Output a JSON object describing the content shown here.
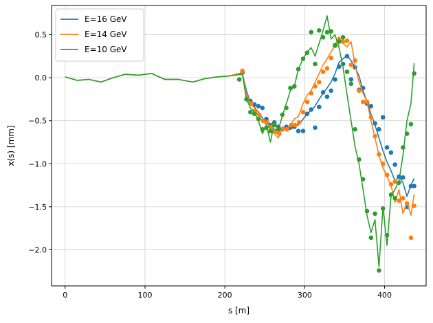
{
  "chart_data": {
    "type": "line",
    "title": "",
    "xlabel": "s [m]",
    "ylabel": "x(s) [mm]",
    "xlim": [
      -17,
      452
    ],
    "ylim": [
      -2.42,
      0.84
    ],
    "grid": true,
    "legend_position": "top-left",
    "xticks": [
      0,
      100,
      200,
      300,
      400
    ],
    "xtick_labels": [
      "0",
      "100",
      "200",
      "300",
      "400"
    ],
    "yticks": [
      0.5,
      0.0,
      -0.5,
      -1.0,
      -1.5,
      -2.0
    ],
    "ytick_labels": [
      "0.5",
      "0.0",
      "−0.5",
      "−1.0",
      "−1.5",
      "−2.0"
    ],
    "series": [
      {
        "name": "E=16 GeV",
        "color": "#1f77b4",
        "line": {
          "x": [
            0,
            15,
            30,
            45,
            60,
            75,
            92,
            108,
            125,
            142,
            160,
            175,
            190,
            205,
            222,
            227,
            232,
            237,
            242,
            247,
            252,
            257,
            262,
            267,
            272,
            277,
            282,
            287,
            292,
            298,
            303,
            308,
            313,
            318,
            323,
            328,
            333,
            338,
            343,
            348,
            353,
            358,
            363,
            368,
            373,
            378,
            383,
            388,
            393,
            398,
            403,
            408,
            413,
            418,
            423,
            428,
            433,
            437
          ],
          "y": [
            0.01,
            -0.03,
            -0.02,
            -0.05,
            0.0,
            0.04,
            0.03,
            0.05,
            -0.02,
            -0.02,
            -0.05,
            -0.01,
            0.01,
            0.02,
            0.05,
            -0.15,
            -0.28,
            -0.34,
            -0.4,
            -0.47,
            -0.52,
            -0.56,
            -0.6,
            -0.62,
            -0.6,
            -0.57,
            -0.58,
            -0.55,
            -0.55,
            -0.48,
            -0.42,
            -0.38,
            -0.33,
            -0.25,
            -0.18,
            -0.12,
            -0.05,
            0.05,
            0.18,
            0.22,
            0.26,
            0.2,
            0.12,
            0.02,
            -0.15,
            -0.28,
            -0.42,
            -0.55,
            -0.7,
            -0.85,
            -0.98,
            -1.08,
            -1.2,
            -1.15,
            -1.22,
            -1.38,
            -1.25,
            -1.17
          ]
        },
        "points": {
          "x": [
            222,
            232,
            237,
            242,
            247,
            252,
            257,
            262,
            267,
            272,
            277,
            282,
            287,
            292,
            298,
            303,
            308,
            313,
            318,
            323,
            328,
            333,
            338,
            343,
            348,
            353,
            358,
            363,
            368,
            373,
            378,
            383,
            388,
            393,
            398,
            403,
            408,
            413,
            418,
            423,
            428,
            433,
            437
          ],
          "y": [
            0.06,
            -0.27,
            -0.31,
            -0.33,
            -0.35,
            -0.48,
            -0.55,
            -0.52,
            -0.57,
            -0.6,
            -0.57,
            -0.58,
            -0.57,
            -0.62,
            -0.62,
            -0.42,
            -0.37,
            -0.58,
            -0.34,
            -0.17,
            -0.22,
            -0.15,
            -0.02,
            0.13,
            0.16,
            0.25,
            -0.02,
            0.12,
            -0.14,
            -0.12,
            -0.3,
            -0.33,
            -0.53,
            -0.6,
            -0.46,
            -0.81,
            -0.87,
            -1.01,
            -1.15,
            -1.16,
            -1.5,
            -1.26,
            -1.26
          ]
        }
      },
      {
        "name": "E=14 GeV",
        "color": "#ff7f0e",
        "line": {
          "x": [
            0,
            15,
            30,
            45,
            60,
            75,
            92,
            108,
            125,
            142,
            160,
            175,
            190,
            205,
            222,
            227,
            232,
            237,
            242,
            247,
            252,
            257,
            262,
            267,
            272,
            277,
            282,
            287,
            292,
            298,
            303,
            308,
            313,
            318,
            323,
            328,
            333,
            338,
            343,
            348,
            353,
            358,
            363,
            368,
            373,
            378,
            383,
            388,
            393,
            398,
            403,
            408,
            413,
            418,
            423,
            428,
            433,
            437
          ],
          "y": [
            0.01,
            -0.03,
            -0.02,
            -0.05,
            0.0,
            0.04,
            0.03,
            0.05,
            -0.02,
            -0.02,
            -0.05,
            -0.01,
            0.01,
            0.02,
            0.06,
            -0.2,
            -0.3,
            -0.35,
            -0.45,
            -0.5,
            -0.55,
            -0.6,
            -0.65,
            -0.7,
            -0.58,
            -0.62,
            -0.55,
            -0.48,
            -0.45,
            -0.3,
            -0.2,
            -0.15,
            -0.05,
            0.05,
            0.15,
            0.22,
            0.3,
            0.38,
            0.48,
            0.4,
            0.36,
            0.42,
            0.15,
            -0.05,
            -0.18,
            -0.28,
            -0.5,
            -0.7,
            -0.9,
            -1.05,
            -1.15,
            -1.25,
            -1.45,
            -1.3,
            -1.58,
            -1.45,
            -1.6,
            -1.35
          ]
        },
        "points": {
          "x": [
            222,
            228,
            233,
            238,
            243,
            248,
            253,
            258,
            263,
            268,
            273,
            278,
            283,
            288,
            293,
            298,
            303,
            308,
            313,
            318,
            323,
            328,
            333,
            338,
            343,
            348,
            353,
            358,
            363,
            368,
            373,
            378,
            383,
            388,
            393,
            398,
            403,
            408,
            413,
            418,
            423,
            428,
            433,
            437
          ],
          "y": [
            0.08,
            -0.24,
            -0.3,
            -0.38,
            -0.43,
            -0.5,
            -0.52,
            -0.57,
            -0.63,
            -0.65,
            -0.59,
            -0.6,
            -0.55,
            -0.55,
            -0.52,
            -0.4,
            -0.28,
            -0.18,
            -0.1,
            -0.05,
            0.07,
            0.11,
            0.23,
            0.37,
            0.44,
            0.42,
            0.43,
            0.15,
            0.2,
            -0.15,
            -0.28,
            -0.28,
            -0.46,
            -0.68,
            -0.89,
            -1.0,
            -1.13,
            -1.24,
            -1.21,
            -1.43,
            -1.4,
            -1.46,
            -1.86,
            -1.49
          ]
        }
      },
      {
        "name": "E=10 GeV",
        "color": "#2ca02c",
        "line": {
          "x": [
            0,
            15,
            30,
            45,
            60,
            75,
            92,
            108,
            125,
            142,
            160,
            175,
            190,
            205,
            222,
            227,
            232,
            237,
            242,
            247,
            252,
            257,
            262,
            267,
            272,
            277,
            282,
            287,
            292,
            298,
            303,
            308,
            313,
            318,
            323,
            328,
            333,
            338,
            343,
            348,
            353,
            358,
            363,
            368,
            373,
            378,
            383,
            388,
            393,
            398,
            403,
            408,
            413,
            418,
            423,
            428,
            433,
            437
          ],
          "y": [
            0.01,
            -0.03,
            -0.02,
            -0.05,
            0.0,
            0.04,
            0.03,
            0.05,
            -0.02,
            -0.02,
            -0.05,
            -0.01,
            0.01,
            0.02,
            0.04,
            -0.25,
            -0.35,
            -0.4,
            -0.5,
            -0.65,
            -0.55,
            -0.75,
            -0.52,
            -0.6,
            -0.45,
            -0.3,
            -0.15,
            -0.1,
            0.1,
            0.22,
            0.3,
            0.35,
            0.25,
            0.4,
            0.55,
            0.72,
            0.45,
            0.5,
            0.35,
            0.12,
            -0.2,
            -0.5,
            -0.8,
            -1.0,
            -1.3,
            -1.6,
            -1.8,
            -1.65,
            -2.2,
            -1.5,
            -1.95,
            -1.38,
            -1.3,
            -1.2,
            -0.9,
            -0.5,
            -0.3,
            0.17
          ]
        },
        "points": {
          "x": [
            218,
            227,
            232,
            237,
            242,
            247,
            252,
            257,
            262,
            267,
            272,
            277,
            282,
            287,
            292,
            298,
            303,
            308,
            313,
            318,
            323,
            328,
            333,
            338,
            343,
            348,
            353,
            358,
            363,
            368,
            373,
            378,
            383,
            388,
            393,
            398,
            403,
            408,
            413,
            418,
            423,
            428,
            433,
            437
          ],
          "y": [
            -0.02,
            -0.25,
            -0.4,
            -0.42,
            -0.48,
            -0.6,
            -0.58,
            -0.62,
            -0.55,
            -0.6,
            -0.43,
            -0.35,
            -0.12,
            -0.1,
            0.1,
            0.22,
            0.29,
            0.53,
            0.16,
            0.55,
            0.47,
            0.53,
            0.54,
            0.38,
            0.42,
            0.47,
            0.07,
            -0.07,
            -0.6,
            -0.95,
            -1.18,
            -1.55,
            -1.86,
            -1.58,
            -2.24,
            -1.52,
            -1.83,
            -1.36,
            -1.4,
            -1.22,
            -0.81,
            -0.65,
            -0.54,
            0.05
          ]
        }
      }
    ]
  }
}
